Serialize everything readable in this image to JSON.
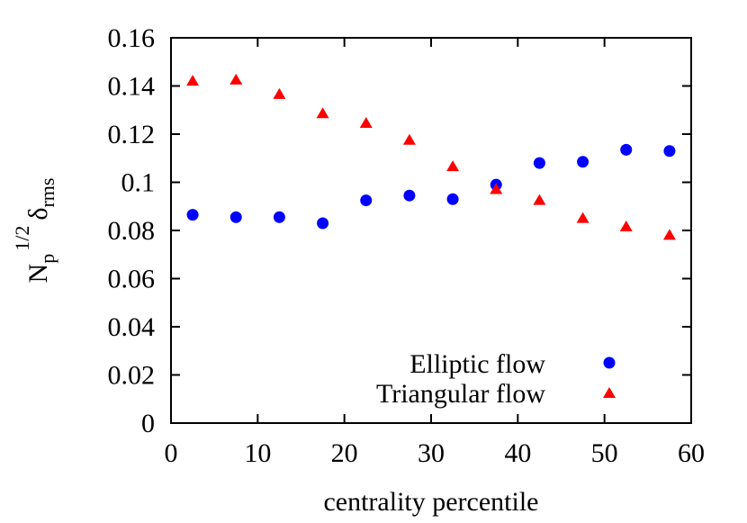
{
  "chart_data": {
    "type": "scatter",
    "title": "",
    "xlabel": "centrality percentile",
    "ylabel": {
      "base": "N",
      "sub": "p",
      "sup": "1/2",
      "symbol": "δ",
      "symbol_sub": "rms"
    },
    "xlim": [
      0,
      60
    ],
    "ylim": [
      0,
      0.16
    ],
    "xticks": [
      "0",
      "10",
      "20",
      "30",
      "40",
      "50",
      "60"
    ],
    "yticks": [
      "0",
      "0.02",
      "0.04",
      "0.06",
      "0.08",
      "0.1",
      "0.12",
      "0.14",
      "0.16"
    ],
    "grid": false,
    "legend_position": "bottom-right",
    "series": [
      {
        "name": "Elliptic flow",
        "marker": "circle",
        "color": "#0000ff",
        "x": [
          2.5,
          7.5,
          12.5,
          17.5,
          22.5,
          27.5,
          32.5,
          37.5,
          42.5,
          47.5,
          52.5,
          57.5
        ],
        "y": [
          0.0865,
          0.0855,
          0.0855,
          0.083,
          0.0925,
          0.0945,
          0.093,
          0.099,
          0.108,
          0.1085,
          0.1135,
          0.113
        ]
      },
      {
        "name": "Triangular flow",
        "marker": "triangle",
        "color": "#ff0000",
        "x": [
          2.5,
          7.5,
          12.5,
          17.5,
          22.5,
          27.5,
          32.5,
          37.5,
          42.5,
          47.5,
          52.5,
          57.5
        ],
        "y": [
          0.142,
          0.1425,
          0.1365,
          0.1285,
          0.1245,
          0.1175,
          0.1065,
          0.097,
          0.0925,
          0.085,
          0.0815,
          0.078
        ]
      }
    ]
  }
}
